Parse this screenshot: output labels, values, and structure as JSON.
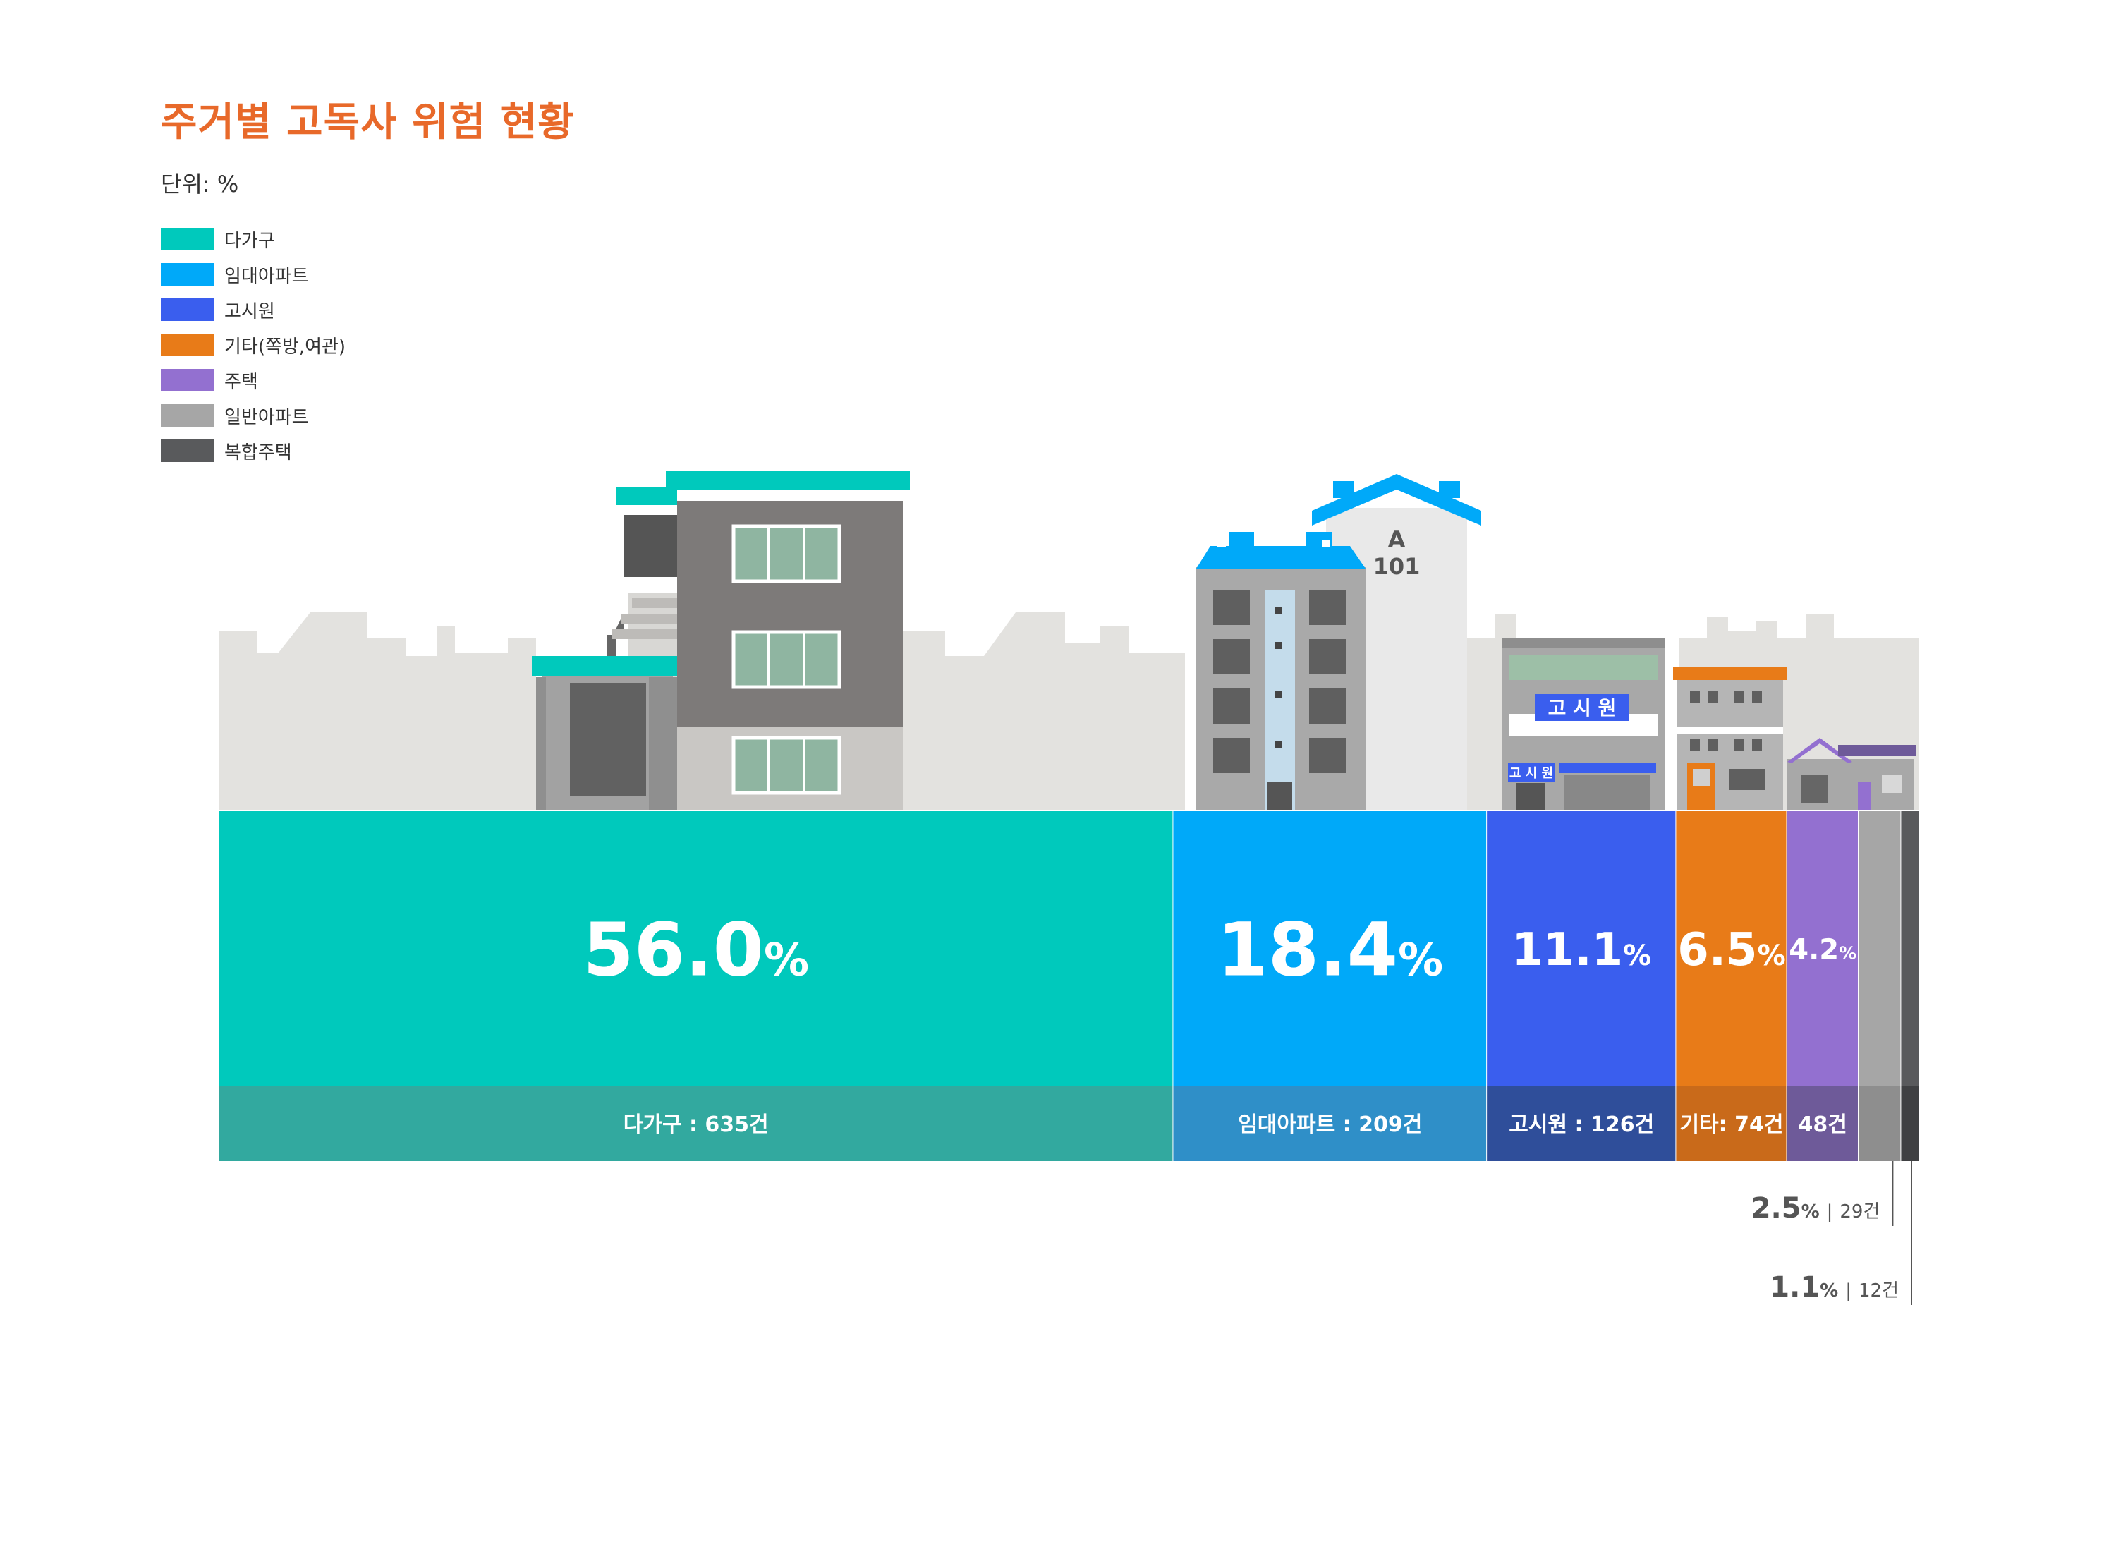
{
  "title": "주거별 고독사 위험 현황",
  "unit_label": "단위: %",
  "colors": {
    "title": "#E8692A",
    "background_skyline": "#E3E2DF"
  },
  "chart_data": {
    "type": "bar",
    "subtype": "stacked-100-percent-horizontal",
    "title": "주거별 고독사 위험 현황",
    "unit": "%",
    "legend_position": "top-left",
    "categories": [
      "다가구",
      "임대아파트",
      "고시원",
      "기타(쪽방,여관)",
      "주택",
      "일반아파트",
      "복합주택"
    ],
    "values": [
      56.0,
      18.4,
      11.1,
      6.5,
      4.2,
      2.5,
      1.1
    ],
    "counts": [
      635,
      209,
      126,
      74,
      48,
      29,
      12
    ],
    "series": [
      {
        "name": "다가구",
        "value": 56.0,
        "value_label": "56.0",
        "count_label": "다가구 : 635건",
        "color": "#00C9BC",
        "dark_color": "#32A99F",
        "pct_inside": true,
        "pct_size": 104
      },
      {
        "name": "임대아파트",
        "value": 18.4,
        "value_label": "18.4",
        "count_label": "임대아파트 : 209건",
        "color": "#00A9F9",
        "dark_color": "#2F8FC8",
        "pct_inside": true,
        "pct_size": 104
      },
      {
        "name": "고시원",
        "value": 11.1,
        "value_label": "11.1",
        "count_label": "고시원 : 126건",
        "color": "#3A5EEE",
        "dark_color": "#2F4E9A",
        "pct_inside": true,
        "pct_size": 64
      },
      {
        "name": "기타(쪽방,여관)",
        "value": 6.5,
        "value_label": "6.5",
        "count_label": "기타: 74건",
        "color": "#E87B18",
        "dark_color": "#C96A1A",
        "pct_inside": true,
        "pct_size": 64
      },
      {
        "name": "주택",
        "value": 4.2,
        "value_label": "4.2",
        "count_label": "48건",
        "color": "#9370D0",
        "dark_color": "#6E5A99",
        "pct_inside": true,
        "pct_size": 40
      },
      {
        "name": "일반아파트",
        "value": 2.5,
        "value_label": "2.5",
        "count_label": "29건",
        "color": "#A6A6A6",
        "dark_color": "#8E8E8E",
        "pct_inside": false,
        "pct_size": 40
      },
      {
        "name": "복합주택",
        "value": 1.1,
        "value_label": "1.1",
        "count_label": "12건",
        "color": "#595A5C",
        "dark_color": "#3F4042",
        "pct_inside": false,
        "pct_size": 40
      }
    ],
    "percent_sign": "%",
    "sign_label": "고 시 원",
    "small_sign_label": "고 시 원",
    "building_label_a": "A",
    "building_label_num": "101"
  }
}
